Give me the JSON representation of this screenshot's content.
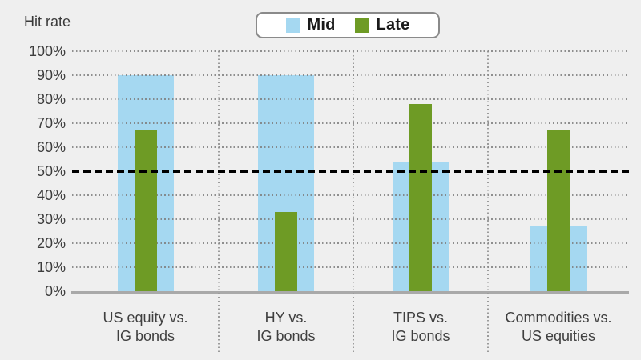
{
  "chart_data": {
    "type": "bar",
    "title": "Hit rate",
    "categories": [
      "US equity vs.\nIG bonds",
      "HY vs.\nIG bonds",
      "TIPS vs.\nIG bonds",
      "Commodities vs.\nUS equities"
    ],
    "series": [
      {
        "name": "Mid",
        "color": "#a5d8f1",
        "values": [
          90,
          90,
          54,
          27
        ]
      },
      {
        "name": "Late",
        "color": "#6e9b25",
        "values": [
          67,
          33,
          78,
          67
        ]
      }
    ],
    "ylim": [
      0,
      100
    ],
    "yticks": [
      "0%",
      "10%",
      "20%",
      "30%",
      "40%",
      "50%",
      "60%",
      "70%",
      "80%",
      "90%",
      "100%"
    ],
    "ylabel": "Hit rate",
    "xlabel": "",
    "reference_line": {
      "value": 50,
      "color": "#000000",
      "style": "dashed"
    },
    "grid": {
      "horizontal": "dotted",
      "category_separators": "dotted vertical"
    },
    "legend_position": "top-center"
  },
  "legend": {
    "items": [
      {
        "label": "Mid",
        "color": "#a5d8f1"
      },
      {
        "label": "Late",
        "color": "#6e9b25"
      }
    ]
  },
  "colors": {
    "background": "#efefef",
    "grid_dots": "#9b9b9b",
    "axis_line": "#a9a9a9",
    "reference_line": "#000000",
    "text": "#3d3d3d"
  }
}
